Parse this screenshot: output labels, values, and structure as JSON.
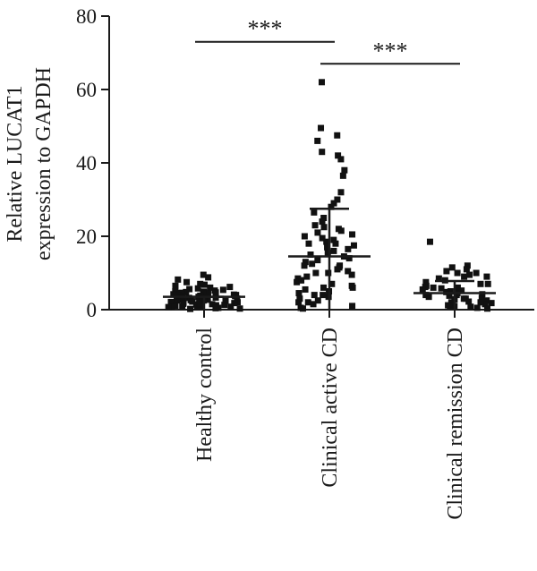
{
  "chart_data": {
    "type": "scatter",
    "ylabel_line1": "Relative LUCAT1",
    "ylabel_line2": "expression to GAPDH",
    "ylim": [
      0,
      80
    ],
    "yticks": [
      0,
      20,
      40,
      60,
      80
    ],
    "categories": [
      "Healthy control",
      "Clinical active CD",
      "Clinical remission CD"
    ],
    "groups": [
      {
        "category": "Healthy control",
        "mean": 3.5,
        "sd_upper": 3.5,
        "sd_lower": 3.5,
        "values": [
          9.5,
          8.8,
          8.2,
          7.5,
          7.0,
          6.8,
          6.5,
          6.2,
          6.0,
          5.8,
          5.6,
          5.4,
          5.2,
          5.0,
          4.9,
          4.8,
          4.7,
          4.6,
          4.5,
          4.4,
          4.3,
          4.2,
          4.1,
          4.0,
          3.9,
          3.8,
          3.7,
          3.6,
          3.5,
          3.4,
          3.3,
          3.2,
          3.1,
          3.0,
          2.9,
          2.8,
          2.7,
          2.6,
          2.5,
          2.4,
          2.3,
          2.2,
          2.1,
          2.0,
          1.9,
          1.8,
          1.7,
          1.6,
          1.5,
          1.4,
          1.3,
          1.2,
          1.1,
          1.0,
          0.9,
          0.8,
          0.7,
          0.6,
          0.5,
          0.4,
          0.3,
          0.2,
          1.5,
          2.5,
          3.5,
          0.8,
          1.8,
          2.8
        ]
      },
      {
        "category": "Clinical active CD",
        "mean": 14.5,
        "sd_upper": 27.5,
        "sd_lower": 14.5,
        "values": [
          62,
          49.5,
          47.5,
          46,
          43,
          42,
          41,
          38,
          36.5,
          32,
          30,
          29,
          28,
          26.5,
          25,
          24,
          23,
          22.5,
          22,
          21.5,
          21,
          20.5,
          20,
          19.5,
          19,
          18.5,
          18,
          17.5,
          17,
          16.5,
          16,
          15.5,
          15,
          14.5,
          14,
          13.5,
          13,
          12.5,
          12,
          11.5,
          11,
          10.5,
          10,
          9.5,
          9,
          8.5,
          8,
          7.5,
          7,
          6.5,
          6,
          5.5,
          5,
          4.5,
          4,
          3.5,
          3,
          2.5,
          2,
          1.5,
          1,
          0.5,
          0.3,
          12,
          18,
          8,
          4,
          2,
          10,
          6
        ]
      },
      {
        "category": "Clinical remission CD",
        "mean": 4.5,
        "sd_upper": 7.8,
        "sd_lower": 4.5,
        "values": [
          18.5,
          12,
          11.5,
          11,
          10.5,
          10,
          9.5,
          9,
          8.5,
          8,
          7.5,
          7,
          6.5,
          6.2,
          6,
          5.8,
          5.5,
          5.2,
          5,
          4.8,
          4.5,
          4.2,
          4,
          3.8,
          3.5,
          3.2,
          3,
          2.8,
          2.5,
          2.2,
          2,
          1.8,
          1.5,
          1.2,
          1,
          0.8,
          0.5,
          0.3,
          6,
          7,
          3,
          2,
          1,
          4,
          9,
          10
        ]
      }
    ],
    "significance": [
      {
        "from": "Healthy control",
        "to": "Clinical active CD",
        "label": "***",
        "y": 73
      },
      {
        "from": "Clinical active CD",
        "to": "Clinical remission CD",
        "label": "***",
        "y": 67
      }
    ]
  }
}
